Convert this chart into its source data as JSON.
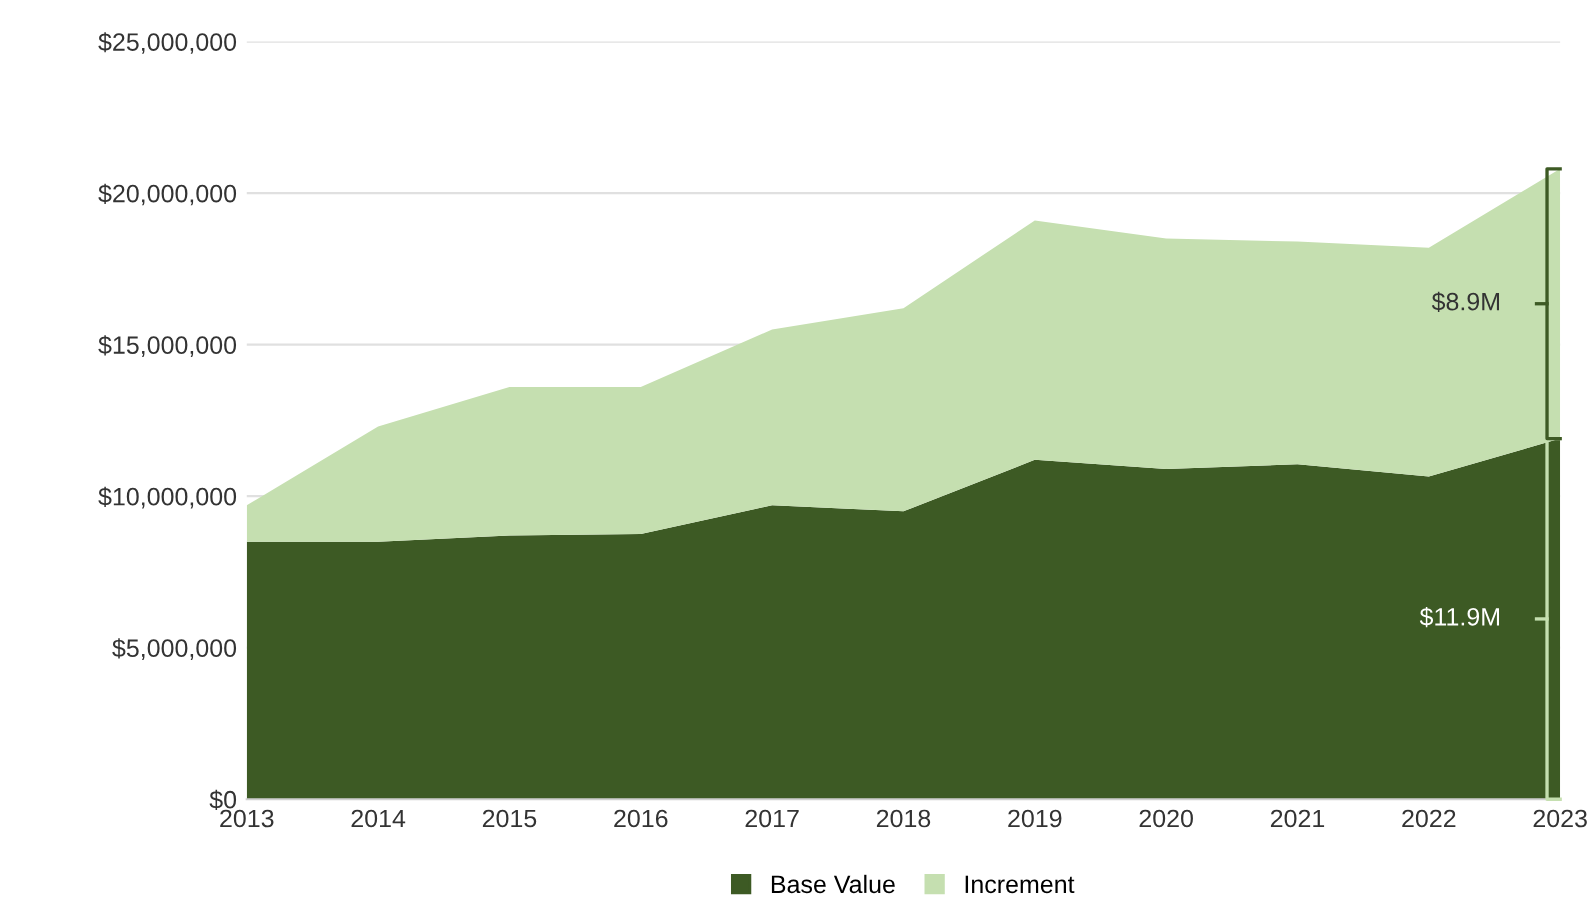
{
  "chart_data": {
    "type": "area",
    "stacked": true,
    "x": [
      2013,
      2014,
      2015,
      2016,
      2017,
      2018,
      2019,
      2020,
      2021,
      2022,
      2023
    ],
    "series": [
      {
        "name": "Base Value",
        "color": "#3d5a24",
        "values": [
          8500000,
          8500000,
          8700000,
          8750000,
          9700000,
          9500000,
          11200000,
          10900000,
          11050000,
          10650000,
          11900000
        ]
      },
      {
        "name": "Increment",
        "color": "#c5dfb0",
        "values": [
          1200000,
          3800000,
          4900000,
          4850000,
          5800000,
          6700000,
          7900000,
          7600000,
          7350000,
          7550000,
          8900000
        ]
      }
    ],
    "xlim": [
      2013,
      2023
    ],
    "xticks": [
      2013,
      2014,
      2015,
      2016,
      2017,
      2018,
      2019,
      2020,
      2021,
      2022,
      2023
    ],
    "ylim": [
      0,
      25000000
    ],
    "yticks": [
      {
        "value": 0,
        "label": "$0"
      },
      {
        "value": 5000000,
        "label": "$5,000,000"
      },
      {
        "value": 10000000,
        "label": "$10,000,000"
      },
      {
        "value": 15000000,
        "label": "$15,000,000"
      },
      {
        "value": 20000000,
        "label": "$20,000,000"
      },
      {
        "value": 25000000,
        "label": "$25,000,000"
      }
    ],
    "annotations": [
      "$11.9M",
      "$8.9M"
    ],
    "grid": "y",
    "legend": "bottom"
  }
}
